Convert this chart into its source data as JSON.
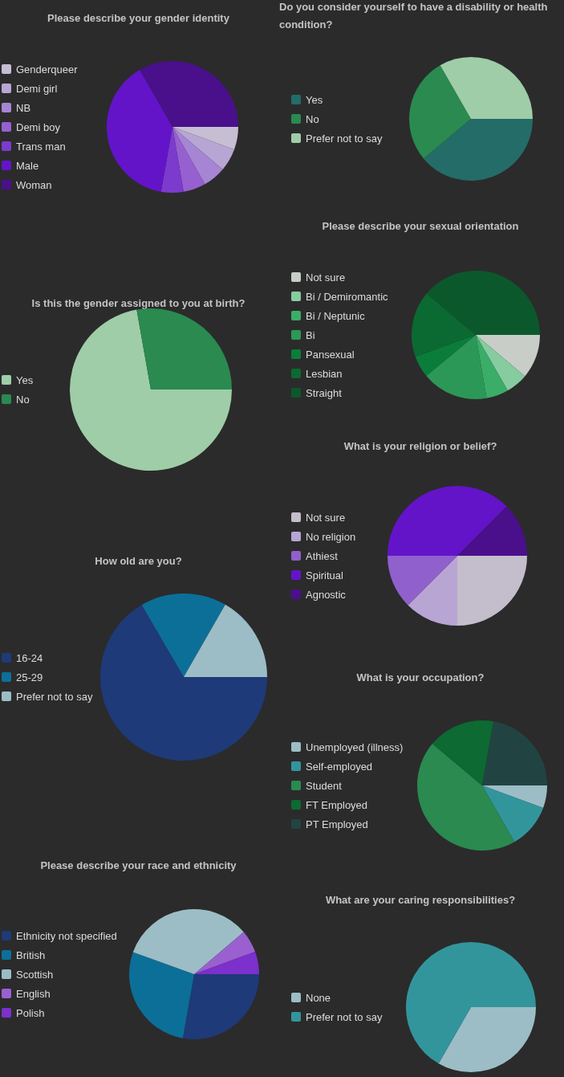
{
  "chart_data": [
    {
      "type": "pie",
      "title": "Please describe your gender identity",
      "legend": "left",
      "categories": [
        "Genderqueer",
        "Demi girl",
        "NB",
        "Demi boy",
        "Trans man",
        "Male",
        "Woman"
      ],
      "values": [
        5.6,
        5.6,
        5.6,
        5.5,
        5.5,
        38.9,
        33.3
      ],
      "colors": [
        "#c6bed3",
        "#b7a6d4",
        "#a685d4",
        "#9660d0",
        "#7c3bcc",
        "#6314c9",
        "#4a108b"
      ]
    },
    {
      "type": "pie",
      "title": "Do you consider yourself to have a disability or health condition?",
      "legend": "left",
      "categories": [
        "Yes",
        "No",
        "Prefer not to say"
      ],
      "values": [
        38.9,
        27.8,
        33.3
      ],
      "colors": [
        "#246c68",
        "#2a8a50",
        "#9fcda8"
      ]
    },
    {
      "type": "pie",
      "title": "Is this the gender assigned to you at birth?",
      "legend": "left",
      "categories": [
        "Yes",
        "No"
      ],
      "values": [
        72.2,
        27.8
      ],
      "colors": [
        "#9fcda8",
        "#2a8a50"
      ]
    },
    {
      "type": "pie",
      "title": "Please describe your sexual orientation",
      "legend": "left",
      "categories": [
        "Not sure",
        "Bi / Demiromantic",
        "Bi / Neptunic",
        "Bi",
        "Pansexual",
        "Lesbian",
        "Straight"
      ],
      "values": [
        11.1,
        5.6,
        5.6,
        16.7,
        5.5,
        16.6,
        38.9
      ],
      "colors": [
        "#c8cdc8",
        "#87cba0",
        "#3aad68",
        "#2c9858",
        "#0b7d3a",
        "#0b6a32",
        "#0c582d"
      ]
    },
    {
      "type": "pie",
      "title": "What is your religion or belief?",
      "legend": "left",
      "categories": [
        "Not sure",
        "No religion",
        "Athiest",
        "Spiritual",
        "Agnostic"
      ],
      "values": [
        25,
        12.5,
        12.5,
        37.5,
        12.5
      ],
      "colors": [
        "#c4bdcc",
        "#b8a5d3",
        "#9060cc",
        "#6314c9",
        "#4a108b"
      ]
    },
    {
      "type": "pie",
      "title": "How old are you?",
      "legend": "left",
      "categories": [
        "16-24",
        "25-29",
        "Prefer not to say"
      ],
      "values": [
        66.6,
        16.7,
        16.7
      ],
      "colors": [
        "#1e3a78",
        "#0c6f98",
        "#9cbdc6"
      ]
    },
    {
      "type": "pie",
      "title": "What is your occupation?",
      "legend": "left",
      "categories": [
        "Unemployed (illness)",
        "Self-employed",
        "Student",
        "FT Employed",
        "PT Employed"
      ],
      "values": [
        5.6,
        11.1,
        44.4,
        16.7,
        22.2
      ],
      "colors": [
        "#9cbdc6",
        "#33959c",
        "#2a8a50",
        "#0c6a32",
        "#214443"
      ]
    },
    {
      "type": "pie",
      "title": "Please describe your race and ethnicity",
      "legend": "left",
      "categories": [
        "Ethnicity not specified",
        "British",
        "Scottish",
        "English",
        "Polish"
      ],
      "values": [
        27.8,
        27.7,
        33.3,
        5.6,
        5.6
      ],
      "colors": [
        "#1e3a78",
        "#0c6f98",
        "#9cbdc6",
        "#9a60d0",
        "#7c30cc"
      ]
    },
    {
      "type": "pie",
      "title": "What are your caring responsibilities?",
      "legend": "left",
      "categories": [
        "None",
        "Prefer not to say"
      ],
      "values": [
        33.3,
        66.7
      ],
      "colors": [
        "#9cbdc6",
        "#33959c"
      ]
    }
  ]
}
